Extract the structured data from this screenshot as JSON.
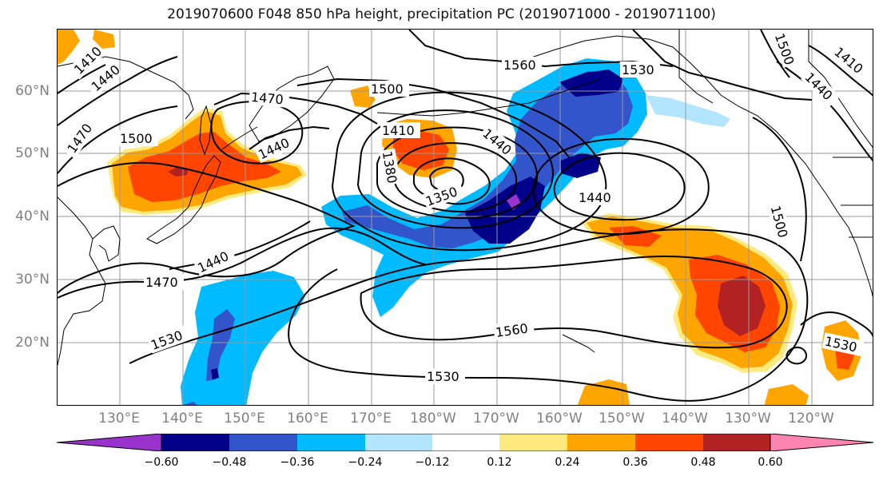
{
  "title": "2019070600 F048 850 hPa height, precipitation PC (2019071000 - 2019071100)",
  "lat_labels": [
    "60°N",
    "50°N",
    "40°N",
    "30°N",
    "20°N"
  ],
  "lon_labels": [
    "130°E",
    "140°E",
    "150°E",
    "160°E",
    "170°E",
    "180°W",
    "170°W",
    "160°W",
    "150°W",
    "140°W",
    "130°W",
    "120°W"
  ],
  "contour_labels": [
    "1410",
    "1440",
    "1470",
    "1500",
    "1440",
    "1470",
    "1500",
    "1530",
    "1560",
    "1410",
    "1440",
    "1380",
    "1350",
    "1440",
    "1440",
    "1530",
    "1410",
    "1500",
    "1500",
    "1440",
    "1470",
    "1530",
    "1560",
    "1530",
    "1530",
    "1470",
    "1410",
    "1440"
  ],
  "colorbar": {
    "colors": [
      "#9933cc",
      "#000088",
      "#3355cc",
      "#00bbff",
      "#b3e5ff",
      "#ffffff",
      "#ffea80",
      "#ffa500",
      "#ff4500",
      "#b22222",
      "#ff85b0"
    ],
    "tick_labels": [
      "−0.60",
      "−0.48",
      "−0.36",
      "−0.24",
      "−0.12",
      "0.12",
      "0.24",
      "0.36",
      "0.48",
      "0.60"
    ]
  },
  "colors": {
    "land_outline": "#000000",
    "grid": "#999999",
    "axis_label": "#808080"
  }
}
